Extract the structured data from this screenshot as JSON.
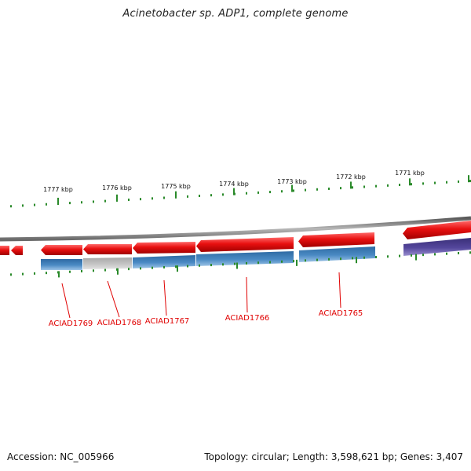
{
  "title": "Acinetobacter sp. ADP1, complete genome",
  "footer": {
    "accession": "Accession: NC_005966",
    "summary": "Topology: circular; Length: 3,598,621 bp; Genes: 3,407"
  },
  "colors": {
    "forward_strand": "#e81010",
    "reverse_gene": "#3f7fb8",
    "selected_gene": "#bcbcbc",
    "other_feature": "#4b3f8f",
    "backbone": "#7a7a7a",
    "tick": "#2a8a2a",
    "gene_label": "#e00000"
  },
  "scale_labels": [
    "1777 kbp",
    "1776 kbp",
    "1775 kbp",
    "1774 kbp",
    "1773 kbp",
    "1772 kbp",
    "1771 kbp"
  ],
  "gene_labels": [
    "ACIAD1769",
    "ACIAD1768",
    "ACIAD1767",
    "ACIAD1766",
    "ACIAD1765"
  ]
}
